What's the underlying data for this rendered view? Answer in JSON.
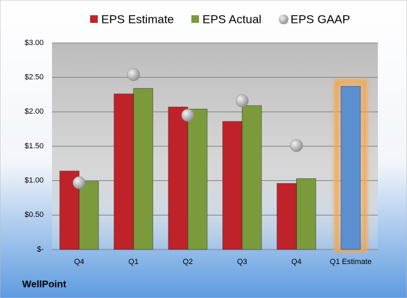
{
  "chart_data": {
    "type": "bar",
    "categories": [
      "Q4",
      "Q1",
      "Q2",
      "Q3",
      "Q4",
      "Q1 Estimate"
    ],
    "series": [
      {
        "name": "EPS Estimate",
        "color": "#c0222a",
        "values": [
          1.14,
          2.26,
          2.07,
          1.86,
          0.96,
          null
        ]
      },
      {
        "name": "EPS Actual",
        "color": "#7a9a3c",
        "values": [
          0.99,
          2.34,
          2.04,
          2.09,
          1.03,
          null
        ]
      },
      {
        "name": "EPS GAAP",
        "color": "#a6a6a6",
        "values": [
          0.97,
          2.54,
          1.95,
          2.16,
          1.51,
          null
        ]
      }
    ],
    "estimate": {
      "color": "#5b8fd0",
      "glow": "#f5a54a",
      "values": [
        null,
        null,
        null,
        null,
        null,
        2.37
      ]
    },
    "ylim": [
      0,
      3
    ],
    "yticks": [
      {
        "value": 0,
        "label": "$-"
      },
      {
        "value": 0.5,
        "label": "$0.50"
      },
      {
        "value": 1,
        "label": "$1.00"
      },
      {
        "value": 1.5,
        "label": "$1.50"
      },
      {
        "value": 2,
        "label": "$2.00"
      },
      {
        "value": 2.5,
        "label": "$2.50"
      },
      {
        "value": 3,
        "label": "$3.00"
      }
    ],
    "grid": true,
    "footer": "WellPoint"
  }
}
